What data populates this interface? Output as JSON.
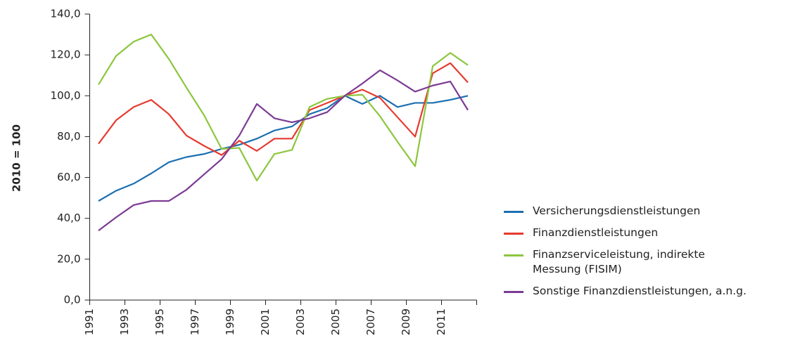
{
  "chart_data": {
    "type": "line",
    "y_label": "2010 = 100",
    "categories": [
      "1991",
      null,
      "1993",
      null,
      "1995",
      null,
      "1997",
      null,
      "1999",
      null,
      "2001",
      null,
      "2003",
      null,
      "2005",
      null,
      "2007",
      null,
      "2009",
      null,
      "2011",
      null
    ],
    "series": [
      {
        "name": "Versicherungsdienstleistungen",
        "color": "#1c6fb0",
        "values": [
          48.5,
          53.5,
          57,
          62,
          67.5,
          70,
          71.5,
          74,
          76,
          79,
          83,
          85,
          91,
          94,
          100,
          96,
          100,
          94.5,
          96.5,
          96.5,
          98,
          100
        ]
      },
      {
        "name": "Finanzdienstleistungen",
        "color": "#e63a2e",
        "values": [
          76.5,
          88,
          94.5,
          98,
          91,
          80.5,
          75.5,
          71,
          78,
          73,
          79,
          79,
          93,
          96.5,
          100,
          103,
          99,
          89.5,
          80,
          111,
          116,
          106.5
        ]
      },
      {
        "name": "Finanzserviceleistung, indirekte Messung (FISIM)",
        "color": "#8cc63e",
        "values": [
          105.5,
          119.5,
          126.5,
          130,
          118,
          104,
          90.5,
          74,
          74.5,
          58.5,
          71.5,
          73.5,
          94.5,
          98.5,
          100,
          100.5,
          90,
          77.5,
          65.5,
          114.5,
          121,
          115
        ]
      },
      {
        "name": "Sonstige Finanzdienstleistungen, a.n.g.",
        "color": "#7b3b94",
        "values": [
          34,
          40.5,
          46.5,
          48.5,
          48.5,
          54,
          61.5,
          69,
          80.5,
          96,
          89,
          87,
          89,
          92,
          100,
          106,
          112.5,
          107.5,
          102,
          105,
          107,
          93
        ]
      }
    ],
    "ylim": [
      0,
      140
    ],
    "yticks": [
      {
        "value": 0,
        "label": "0,0"
      },
      {
        "value": 20,
        "label": "20,0"
      },
      {
        "value": 40,
        "label": "40,0"
      },
      {
        "value": 60,
        "label": "60,0"
      },
      {
        "value": 80,
        "label": "80,0"
      },
      {
        "value": 100,
        "label": "100,0"
      },
      {
        "value": 120,
        "label": "120,0"
      },
      {
        "value": 140,
        "label": "140,0"
      }
    ],
    "legend": "right"
  }
}
